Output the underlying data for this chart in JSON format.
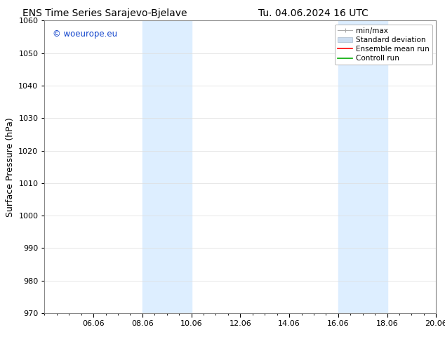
{
  "title_left": "ENS Time Series Sarajevo-Bjelave",
  "title_right": "Tu. 04.06.2024 16 UTC",
  "ylabel": "Surface Pressure (hPa)",
  "ylim": [
    970,
    1060
  ],
  "yticks": [
    970,
    980,
    990,
    1000,
    1010,
    1020,
    1030,
    1040,
    1050,
    1060
  ],
  "xlim": [
    0,
    16
  ],
  "xtick_labels": [
    "06.06",
    "08.06",
    "10.06",
    "12.06",
    "14.06",
    "16.06",
    "18.06",
    "20.06"
  ],
  "xtick_positions": [
    2,
    4,
    6,
    8,
    10,
    12,
    14,
    16
  ],
  "shaded_bands": [
    {
      "x_start": 4,
      "x_end": 6
    },
    {
      "x_start": 12,
      "x_end": 14
    }
  ],
  "shade_color": "#ddeeff",
  "background_color": "#ffffff",
  "watermark_text": "© woeurope.eu",
  "watermark_color": "#1144cc",
  "legend_labels": [
    "min/max",
    "Standard deviation",
    "Ensemble mean run",
    "Controll run"
  ],
  "legend_colors": [
    "#aaaaaa",
    "#ccddf0",
    "#ff0000",
    "#00aa00"
  ],
  "title_fontsize": 10,
  "tick_fontsize": 8,
  "ylabel_fontsize": 9,
  "legend_fontsize": 7.5
}
